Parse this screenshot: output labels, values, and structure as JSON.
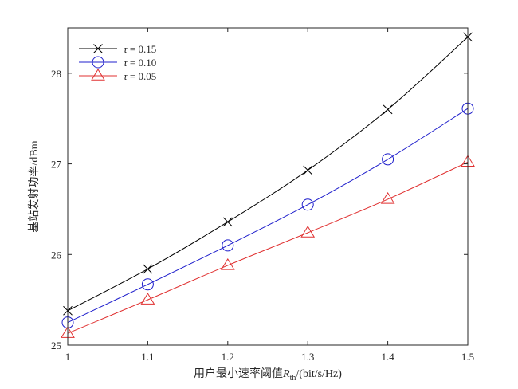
{
  "chart_data": {
    "type": "line",
    "title": "",
    "xlabel_main": "用户最小速率阈值",
    "xlabel_sym": "R",
    "xlabel_sub": "th",
    "xlabel_unit": "/(bit/s/Hz)",
    "ylabel": "基站发射功率/dBm",
    "xlim": [
      1,
      1.5
    ],
    "ylim": [
      25,
      28.5
    ],
    "xticks": [
      1,
      1.1,
      1.2,
      1.3,
      1.4,
      1.5
    ],
    "xtick_labels": [
      "1",
      "1.1",
      "1.2",
      "1.3",
      "1.4",
      "1.5"
    ],
    "yticks": [
      25,
      26,
      27,
      28
    ],
    "ytick_labels": [
      "25",
      "26",
      "27",
      "28"
    ],
    "grid": false,
    "legend_position": "top-left",
    "x": [
      1,
      1.1,
      1.2,
      1.3,
      1.4,
      1.5
    ],
    "series": [
      {
        "name": "τ = 0.15",
        "sym": "τ",
        "val": " = 0.15",
        "color": "#000000",
        "marker": "x",
        "values": [
          25.38,
          25.84,
          26.36,
          26.93,
          27.6,
          28.4
        ]
      },
      {
        "name": "τ = 0.10",
        "sym": "τ",
        "val": " = 0.10",
        "color": "#1f1fcc",
        "marker": "o",
        "values": [
          25.25,
          25.67,
          26.1,
          26.55,
          27.05,
          27.61
        ]
      },
      {
        "name": "τ = 0.05",
        "sym": "τ",
        "val": " = 0.05",
        "color": "#e03030",
        "marker": "triangle",
        "values": [
          25.13,
          25.5,
          25.88,
          26.24,
          26.61,
          27.02
        ]
      }
    ]
  }
}
